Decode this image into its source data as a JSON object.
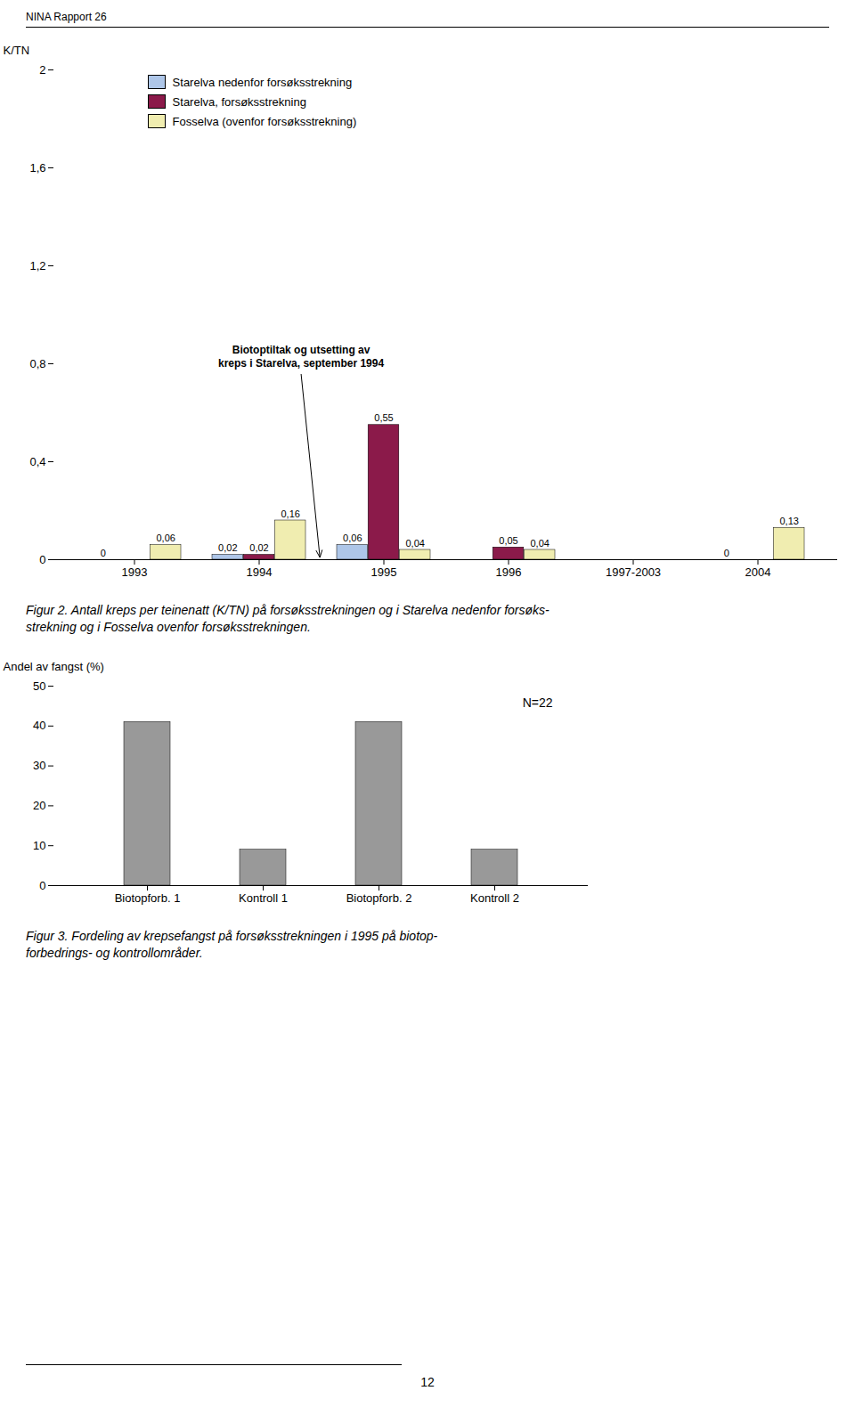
{
  "header": "NINA Rapport 26",
  "page_number": "12",
  "chart_data": [
    {
      "type": "bar",
      "categories": [
        "1993",
        "1994",
        "1995",
        "1996",
        "1997-2003",
        "2004"
      ],
      "series": [
        {
          "name": "Starelva nedenfor forsøksstrekning",
          "color": "#aec6e8",
          "values": [
            0,
            0.02,
            0.06,
            0,
            0,
            0
          ],
          "value_labels": [
            "0",
            "0,02",
            "0,06",
            null,
            null,
            "0"
          ]
        },
        {
          "name": "Starelva, forsøksstrekning",
          "color": "#8B1A4A",
          "values": [
            0,
            0.02,
            0.55,
            0.05,
            0,
            0
          ],
          "value_labels": [
            null,
            "0,02",
            "0,55",
            "0,05",
            null,
            null
          ]
        },
        {
          "name": "Fosselva (ovenfor forsøksstrekning)",
          "color": "#f0edb0",
          "values": [
            0.06,
            0.16,
            0.04,
            0.04,
            0,
            0.13
          ],
          "value_labels": [
            "0,06",
            "0,16",
            "0,04",
            "0,04",
            null,
            "0,13"
          ]
        }
      ],
      "ylabel": "K/TN",
      "ylim": [
        0,
        2.0
      ],
      "yticks": [
        0,
        {
          "value": 0.4,
          "label": "0,4"
        },
        {
          "value": 0.8,
          "label": "0,8"
        },
        {
          "value": 1.2,
          "label": "1,2"
        },
        {
          "value": 1.6,
          "label": "1,6"
        },
        2
      ],
      "data_labels": true,
      "legend": "upper left",
      "annotation": "Biotoptiltak og utsetting av\nkreps i Starelva, september 1994",
      "caption": "Figur 2. Antall kreps per teinenatt (K/TN) på forsøksstrekningen og i Starelva nedenfor forsøks-\nstrekning og i Fosselva ovenfor forsøksstrekningen."
    },
    {
      "type": "bar",
      "categories": [
        "Biotopforb. 1",
        "Kontroll 1",
        "Biotopforb. 2",
        "Kontroll 2"
      ],
      "values": [
        41,
        9,
        41,
        9
      ],
      "color": "#999999",
      "ylabel": "Andel av fangst (%)",
      "ylim": [
        0,
        50
      ],
      "yticks": [
        0,
        10,
        20,
        30,
        40,
        50
      ],
      "annotation": "N=22",
      "caption": "Figur 3. Fordeling av krepsefangst på forsøksstrekningen i 1995 på biotop-\nforbedrings- og kontrollområder."
    }
  ]
}
